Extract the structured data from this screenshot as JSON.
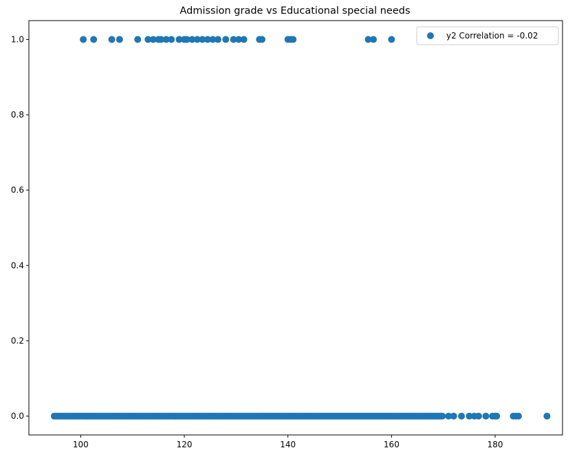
{
  "chart_data": {
    "type": "scatter",
    "title": "Admission grade vs Educational special needs",
    "xlabel": "",
    "ylabel": "",
    "xlim": [
      90,
      193
    ],
    "ylim": [
      -0.05,
      1.05
    ],
    "xticks": [
      100,
      120,
      140,
      160,
      180
    ],
    "yticks": [
      0.0,
      0.2,
      0.4,
      0.6,
      0.8,
      1.0
    ],
    "xtick_labels": [
      "100",
      "120",
      "140",
      "160",
      "180"
    ],
    "ytick_labels": [
      "0.0",
      "0.2",
      "0.4",
      "0.6",
      "0.8",
      "1.0"
    ],
    "grid": false,
    "legend_position": "top-right",
    "series": [
      {
        "name": "y2 Correlation = -0.02",
        "color": "#1f77b4",
        "points_y1_x": [
          100.5,
          102.5,
          106,
          107.5,
          111,
          113,
          114,
          115,
          115.5,
          116.5,
          117.5,
          119,
          120,
          120.5,
          121.5,
          122.5,
          123.5,
          124.5,
          125.5,
          126.5,
          128,
          129.5,
          130.5,
          131.5,
          134.5,
          135,
          140,
          140.5,
          141,
          155.5,
          156.5,
          160
        ],
        "y0_x_range": [
          94.9,
          190
        ]
      }
    ]
  }
}
